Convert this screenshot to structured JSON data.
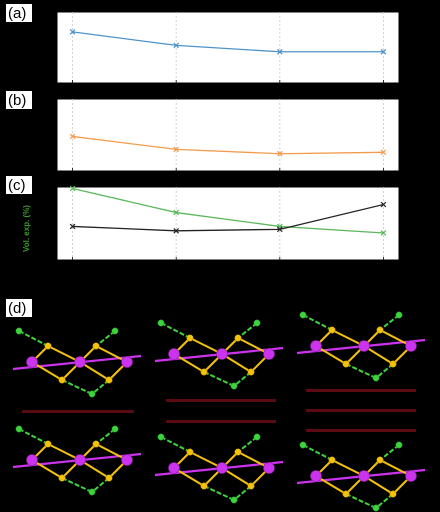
{
  "panels": {
    "a": "(a)",
    "b": "(b)",
    "c": "(c)",
    "d": "(d)"
  },
  "chart_data": [
    {
      "panel": "(a)",
      "type": "line",
      "x": [
        1,
        2,
        3,
        4
      ],
      "series": [
        {
          "color": "#4f93c8",
          "marker": "x",
          "values": [
            0.72,
            0.53,
            0.44,
            0.44
          ]
        }
      ],
      "xlim": [
        0.85,
        4.15
      ],
      "ylim": [
        0,
        1
      ],
      "grid_x": true
    },
    {
      "panel": "(b)",
      "type": "line",
      "x": [
        1,
        2,
        3,
        4
      ],
      "series": [
        {
          "color": "#f39a4c",
          "marker": "x",
          "values": [
            0.48,
            0.3,
            0.24,
            0.26
          ]
        }
      ],
      "xlim": [
        0.85,
        4.15
      ],
      "ylim": [
        0,
        1
      ],
      "grid_x": true
    },
    {
      "panel": "(c)",
      "type": "line",
      "x": [
        1,
        2,
        3,
        4
      ],
      "ylabel": "Vol. exp. (%)",
      "ylabel_color": "#3a9a2a",
      "series": [
        {
          "color": "#5cb85c",
          "marker": "x",
          "values": [
            0.98,
            0.65,
            0.46,
            0.37
          ]
        },
        {
          "color": "#222222",
          "marker": "x",
          "values": [
            0.46,
            0.4,
            0.42,
            0.76
          ]
        }
      ],
      "xlim": [
        0.85,
        4.15
      ],
      "ylim": [
        0,
        1
      ],
      "grid_x": true
    }
  ],
  "structures": {
    "colors": {
      "pink": "#cc33ee",
      "yellow": "#f5c20a",
      "green": "#3fd23f",
      "band": "#5a0b12"
    },
    "count": 6
  }
}
